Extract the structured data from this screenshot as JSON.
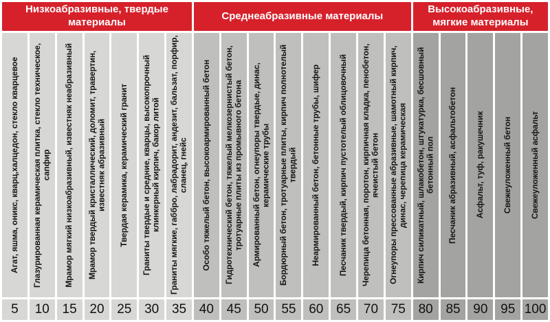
{
  "colors": {
    "header_red": "#d6212b",
    "header_text": "#ffffff",
    "group_low_gray": "#d7d7d5",
    "group_mid_gray": "#bfbfbd",
    "group_high_gray": "#a3a3a1",
    "label_text": "#151515",
    "number_text": "#111111",
    "background": "#ffffff"
  },
  "chart_data": {
    "type": "table",
    "title": "",
    "x_axis_values": [
      5,
      10,
      15,
      20,
      25,
      30,
      35,
      40,
      45,
      50,
      55,
      60,
      65,
      70,
      75,
      80,
      85,
      90,
      95,
      100
    ],
    "groups": [
      {
        "label": "Низкоабразивные, твердые материалы",
        "span": 7
      },
      {
        "label": "Среднеабразивные материалы",
        "span": 8
      },
      {
        "label": "Высокоабразивные, мягкие материалы",
        "span": 5
      }
    ],
    "entries": [
      {
        "value": 5,
        "group": 0,
        "materials": "Агат, яшма, оникс, кварц,халцедон, стекло кварцевое"
      },
      {
        "value": 10,
        "group": 0,
        "materials": "Глазурированная керамическая плитка, стекло техническое, сапфир"
      },
      {
        "value": 15,
        "group": 0,
        "materials": "Мрамор мягкий низкоабразивный, известняк неабразивный"
      },
      {
        "value": 20,
        "group": 0,
        "materials": "Мрамор твердый кристаллический, доломит, травертин, известняк абразивный"
      },
      {
        "value": 25,
        "group": 0,
        "materials": "Твердая керамика, керамический гранит"
      },
      {
        "value": 30,
        "group": 0,
        "materials": "Граниты твердые и средние, кварцы, высокопрочный клинкерный кирпич, бакор литой"
      },
      {
        "value": 35,
        "group": 0,
        "materials": "Граниты мягкие, габбро, лабрадорит, андезит, бальзат, порфир, сланец, гнейс"
      },
      {
        "value": 40,
        "group": 1,
        "materials": "Особо тяжелый бетон, высокоармированный бетон"
      },
      {
        "value": 45,
        "group": 1,
        "materials": "Гидротехнический бетон, тяжелый мелкозернистый бетон, тротуарные плиты из промывного бетона"
      },
      {
        "value": 50,
        "group": 1,
        "materials": "Армированный бетон, огнеупоры твердые, динас, керамические трубы"
      },
      {
        "value": 55,
        "group": 1,
        "materials": "Бордюрный бетон, тротуарные плиты, кирпич полнотелый твердый"
      },
      {
        "value": 60,
        "group": 1,
        "materials": "Неармированный бетон, бетонные трубы, шифер"
      },
      {
        "value": 65,
        "group": 1,
        "materials": "Песчаник твердый, кирпич пустотелый облицовочный"
      },
      {
        "value": 70,
        "group": 1,
        "materials": "Черепица бетонная, поротон, кирпичная кладка, пенобетон, ячеистый бетон"
      },
      {
        "value": 75,
        "group": 1,
        "materials": "Огнеупоры прессованные абразивные, шамотный кирпич, динас, черепица керамическая"
      },
      {
        "value": 80,
        "group": 2,
        "materials": "Кирпич силикатный, шлакобетон, штукатурка, бесшовный бетонный пол"
      },
      {
        "value": 85,
        "group": 2,
        "materials": "Песчаник абразивный, асфальтобетон"
      },
      {
        "value": 90,
        "group": 2,
        "materials": "Асфальт, туф, ракушечник"
      },
      {
        "value": 95,
        "group": 2,
        "materials": "Свежеуложенный бетон"
      },
      {
        "value": 100,
        "group": 2,
        "materials": "Свежеуложенный асфальт"
      }
    ]
  }
}
